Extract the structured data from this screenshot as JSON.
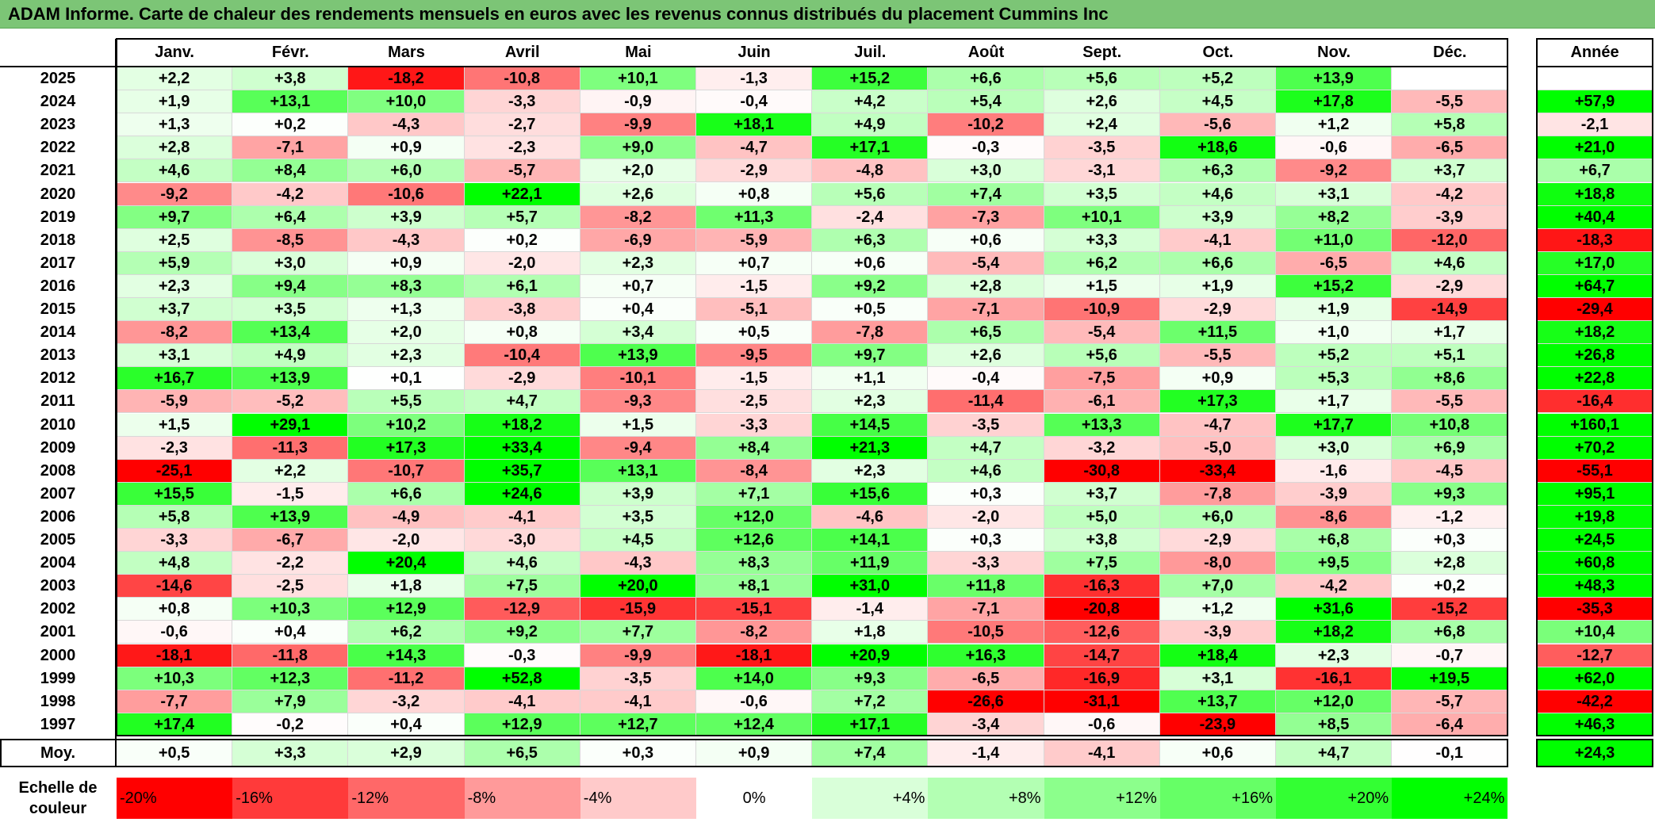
{
  "title": "ADAM Informe. Carte de chaleur des rendements mensuels en euros avec les revenus connus distribués du placement Cummins Inc",
  "chart_data": {
    "type": "heatmap",
    "columns": [
      "Janv.",
      "Févr.",
      "Mars",
      "Avril",
      "Mai",
      "Juin",
      "Juil.",
      "Août",
      "Sept.",
      "Oct.",
      "Nov.",
      "Déc."
    ],
    "year_column": "Année",
    "rows": [
      {
        "year": "2025",
        "values": [
          "+2,2",
          "+3,8",
          "-18,2",
          "-10,8",
          "+10,1",
          "-1,3",
          "+15,2",
          "+6,6",
          "+5,6",
          "+5,2",
          "+13,9",
          ""
        ],
        "annual": ""
      },
      {
        "year": "2024",
        "values": [
          "+1,9",
          "+13,1",
          "+10,0",
          "-3,3",
          "-0,9",
          "-0,4",
          "+4,2",
          "+5,4",
          "+2,6",
          "+4,5",
          "+17,8",
          "-5,5"
        ],
        "annual": "+57,9"
      },
      {
        "year": "2023",
        "values": [
          "+1,3",
          "+0,2",
          "-4,3",
          "-2,7",
          "-9,9",
          "+18,1",
          "+4,9",
          "-10,2",
          "+2,4",
          "-5,6",
          "+1,2",
          "+5,8"
        ],
        "annual": "-2,1"
      },
      {
        "year": "2022",
        "values": [
          "+2,8",
          "-7,1",
          "+0,9",
          "-2,3",
          "+9,0",
          "-4,7",
          "+17,1",
          "-0,3",
          "-3,5",
          "+18,6",
          "-0,6",
          "-6,5"
        ],
        "annual": "+21,0"
      },
      {
        "year": "2021",
        "values": [
          "+4,6",
          "+8,4",
          "+6,0",
          "-5,7",
          "+2,0",
          "-2,9",
          "-4,8",
          "+3,0",
          "-3,1",
          "+6,3",
          "-9,2",
          "+3,7"
        ],
        "annual": "+6,7"
      },
      {
        "year": "2020",
        "values": [
          "-9,2",
          "-4,2",
          "-10,6",
          "+22,1",
          "+2,6",
          "+0,8",
          "+5,6",
          "+7,4",
          "+3,5",
          "+4,6",
          "+3,1",
          "-4,2"
        ],
        "annual": "+18,8"
      },
      {
        "year": "2019",
        "values": [
          "+9,7",
          "+6,4",
          "+3,9",
          "+5,7",
          "-8,2",
          "+11,3",
          "-2,4",
          "-7,3",
          "+10,1",
          "+3,9",
          "+8,2",
          "-3,9"
        ],
        "annual": "+40,4"
      },
      {
        "year": "2018",
        "values": [
          "+2,5",
          "-8,5",
          "-4,3",
          "+0,2",
          "-6,9",
          "-5,9",
          "+6,3",
          "+0,6",
          "+3,3",
          "-4,1",
          "+11,0",
          "-12,0"
        ],
        "annual": "-18,3"
      },
      {
        "year": "2017",
        "values": [
          "+5,9",
          "+3,0",
          "+0,9",
          "-2,0",
          "+2,3",
          "+0,7",
          "+0,6",
          "-5,4",
          "+6,2",
          "+6,6",
          "-6,5",
          "+4,6"
        ],
        "annual": "+17,0"
      },
      {
        "year": "2016",
        "values": [
          "+2,3",
          "+9,4",
          "+8,3",
          "+6,1",
          "+0,7",
          "-1,5",
          "+9,2",
          "+2,8",
          "+1,5",
          "+1,9",
          "+15,2",
          "-2,9"
        ],
        "annual": "+64,7"
      },
      {
        "year": "2015",
        "values": [
          "+3,7",
          "+3,5",
          "+1,3",
          "-3,8",
          "+0,4",
          "-5,1",
          "+0,5",
          "-7,1",
          "-10,9",
          "-2,9",
          "+1,9",
          "-14,9"
        ],
        "annual": "-29,4"
      },
      {
        "year": "2014",
        "values": [
          "-8,2",
          "+13,4",
          "+2,0",
          "+0,8",
          "+3,4",
          "+0,5",
          "-7,8",
          "+6,5",
          "-5,4",
          "+11,5",
          "+1,0",
          "+1,7"
        ],
        "annual": "+18,2"
      },
      {
        "year": "2013",
        "values": [
          "+3,1",
          "+4,9",
          "+2,3",
          "-10,4",
          "+13,9",
          "-9,5",
          "+9,7",
          "+2,6",
          "+5,6",
          "-5,5",
          "+5,2",
          "+5,1"
        ],
        "annual": "+26,8"
      },
      {
        "year": "2012",
        "values": [
          "+16,7",
          "+13,9",
          "+0,1",
          "-2,9",
          "-10,1",
          "-1,5",
          "+1,1",
          "-0,4",
          "-7,5",
          "+0,9",
          "+5,3",
          "+8,6"
        ],
        "annual": "+22,8"
      },
      {
        "year": "2011",
        "values": [
          "-5,9",
          "-5,2",
          "+5,5",
          "+4,7",
          "-9,3",
          "-2,5",
          "+2,3",
          "-11,4",
          "-6,1",
          "+17,3",
          "+1,7",
          "-5,5"
        ],
        "annual": "-16,4"
      },
      {
        "year": "2010",
        "values": [
          "+1,5",
          "+29,1",
          "+10,2",
          "+18,2",
          "+1,5",
          "-3,3",
          "+14,5",
          "-3,5",
          "+13,3",
          "-4,7",
          "+17,7",
          "+10,8"
        ],
        "annual": "+160,1"
      },
      {
        "year": "2009",
        "values": [
          "-2,3",
          "-11,3",
          "+17,3",
          "+33,4",
          "-9,4",
          "+8,4",
          "+21,3",
          "+4,7",
          "-3,2",
          "-5,0",
          "+3,0",
          "+6,9"
        ],
        "annual": "+70,2"
      },
      {
        "year": "2008",
        "values": [
          "-25,1",
          "+2,2",
          "-10,7",
          "+35,7",
          "+13,1",
          "-8,4",
          "+2,3",
          "+4,6",
          "-30,8",
          "-33,4",
          "-1,6",
          "-4,5"
        ],
        "annual": "-55,1"
      },
      {
        "year": "2007",
        "values": [
          "+15,5",
          "-1,5",
          "+6,6",
          "+24,6",
          "+3,9",
          "+7,1",
          "+15,6",
          "+0,3",
          "+3,7",
          "-7,8",
          "-3,9",
          "+9,3"
        ],
        "annual": "+95,1"
      },
      {
        "year": "2006",
        "values": [
          "+5,8",
          "+13,9",
          "-4,9",
          "-4,1",
          "+3,5",
          "+12,0",
          "-4,6",
          "-2,0",
          "+5,0",
          "+6,0",
          "-8,6",
          "-1,2"
        ],
        "annual": "+19,8"
      },
      {
        "year": "2005",
        "values": [
          "-3,3",
          "-6,7",
          "-2,0",
          "-3,0",
          "+4,5",
          "+12,6",
          "+14,1",
          "+0,3",
          "+3,8",
          "-2,9",
          "+6,8",
          "+0,3"
        ],
        "annual": "+24,5"
      },
      {
        "year": "2004",
        "values": [
          "+4,8",
          "-2,2",
          "+20,4",
          "+4,6",
          "-4,3",
          "+8,3",
          "+11,9",
          "-3,3",
          "+7,5",
          "-8,0",
          "+9,5",
          "+2,8"
        ],
        "annual": "+60,8"
      },
      {
        "year": "2003",
        "values": [
          "-14,6",
          "-2,5",
          "+1,8",
          "+7,5",
          "+20,0",
          "+8,1",
          "+31,0",
          "+11,8",
          "-16,3",
          "+7,0",
          "-4,2",
          "+0,2"
        ],
        "annual": "+48,3"
      },
      {
        "year": "2002",
        "values": [
          "+0,8",
          "+10,3",
          "+12,9",
          "-12,9",
          "-15,9",
          "-15,1",
          "-1,4",
          "-7,1",
          "-20,8",
          "+1,2",
          "+31,6",
          "-15,2"
        ],
        "annual": "-35,3"
      },
      {
        "year": "2001",
        "values": [
          "-0,6",
          "+0,4",
          "+6,2",
          "+9,2",
          "+7,7",
          "-8,2",
          "+1,8",
          "-10,5",
          "-12,6",
          "-3,9",
          "+18,2",
          "+6,8"
        ],
        "annual": "+10,4"
      },
      {
        "year": "2000",
        "values": [
          "-18,1",
          "-11,8",
          "+14,3",
          "-0,3",
          "-9,9",
          "-18,1",
          "+20,9",
          "+16,3",
          "-14,7",
          "+18,4",
          "+2,3",
          "-0,7"
        ],
        "annual": "-12,7"
      },
      {
        "year": "1999",
        "values": [
          "+10,3",
          "+12,3",
          "-11,2",
          "+52,8",
          "-3,5",
          "+14,0",
          "+9,3",
          "-6,5",
          "-16,9",
          "+3,1",
          "-16,1",
          "+19,5"
        ],
        "annual": "+62,0"
      },
      {
        "year": "1998",
        "values": [
          "-7,7",
          "+7,9",
          "-3,2",
          "-4,1",
          "-4,1",
          "-0,6",
          "+7,2",
          "-26,6",
          "-31,1",
          "+13,7",
          "+12,0",
          "-5,7"
        ],
        "annual": "-42,2"
      },
      {
        "year": "1997",
        "values": [
          "+17,4",
          "-0,2",
          "+0,4",
          "+12,9",
          "+12,7",
          "+12,4",
          "+17,1",
          "-3,4",
          "-0,6",
          "-23,9",
          "+8,5",
          "-6,4"
        ],
        "annual": "+46,3"
      }
    ],
    "average": {
      "label": "Moy.",
      "values": [
        "+0,5",
        "+3,3",
        "+2,9",
        "+6,5",
        "+0,3",
        "+0,9",
        "+7,4",
        "-1,4",
        "-4,1",
        "+0,6",
        "+4,7",
        "-0,1"
      ],
      "annual": "+24,3"
    },
    "scale": {
      "label_line1": "Echelle de",
      "label_line2": "couleur",
      "steps": [
        {
          "label": "-20%",
          "value": -20,
          "color": "#ff0000"
        },
        {
          "label": "-16%",
          "value": -16,
          "color": "#ff3a3a"
        },
        {
          "label": "-12%",
          "value": -12,
          "color": "#ff6868"
        },
        {
          "label": "-8%",
          "value": -8,
          "color": "#ff9a9a"
        },
        {
          "label": "-4%",
          "value": -4,
          "color": "#ffcaca"
        },
        {
          "label": "0%",
          "value": 0,
          "color": "#ffffff"
        },
        {
          "label": "+4%",
          "value": 4,
          "color": "#d9ffd9"
        },
        {
          "label": "+8%",
          "value": 8,
          "color": "#b3ffb3"
        },
        {
          "label": "+12%",
          "value": 12,
          "color": "#8cff8c"
        },
        {
          "label": "+16%",
          "value": 16,
          "color": "#66ff66"
        },
        {
          "label": "+20%",
          "value": 20,
          "color": "#33ff33"
        },
        {
          "label": "+24%",
          "value": 24,
          "color": "#00ff00"
        }
      ]
    },
    "colors": {
      "negative_max": "#ff0000",
      "neutral": "#ffffff",
      "positive_max": "#00ff00",
      "title_bar": "#7cc576"
    }
  }
}
